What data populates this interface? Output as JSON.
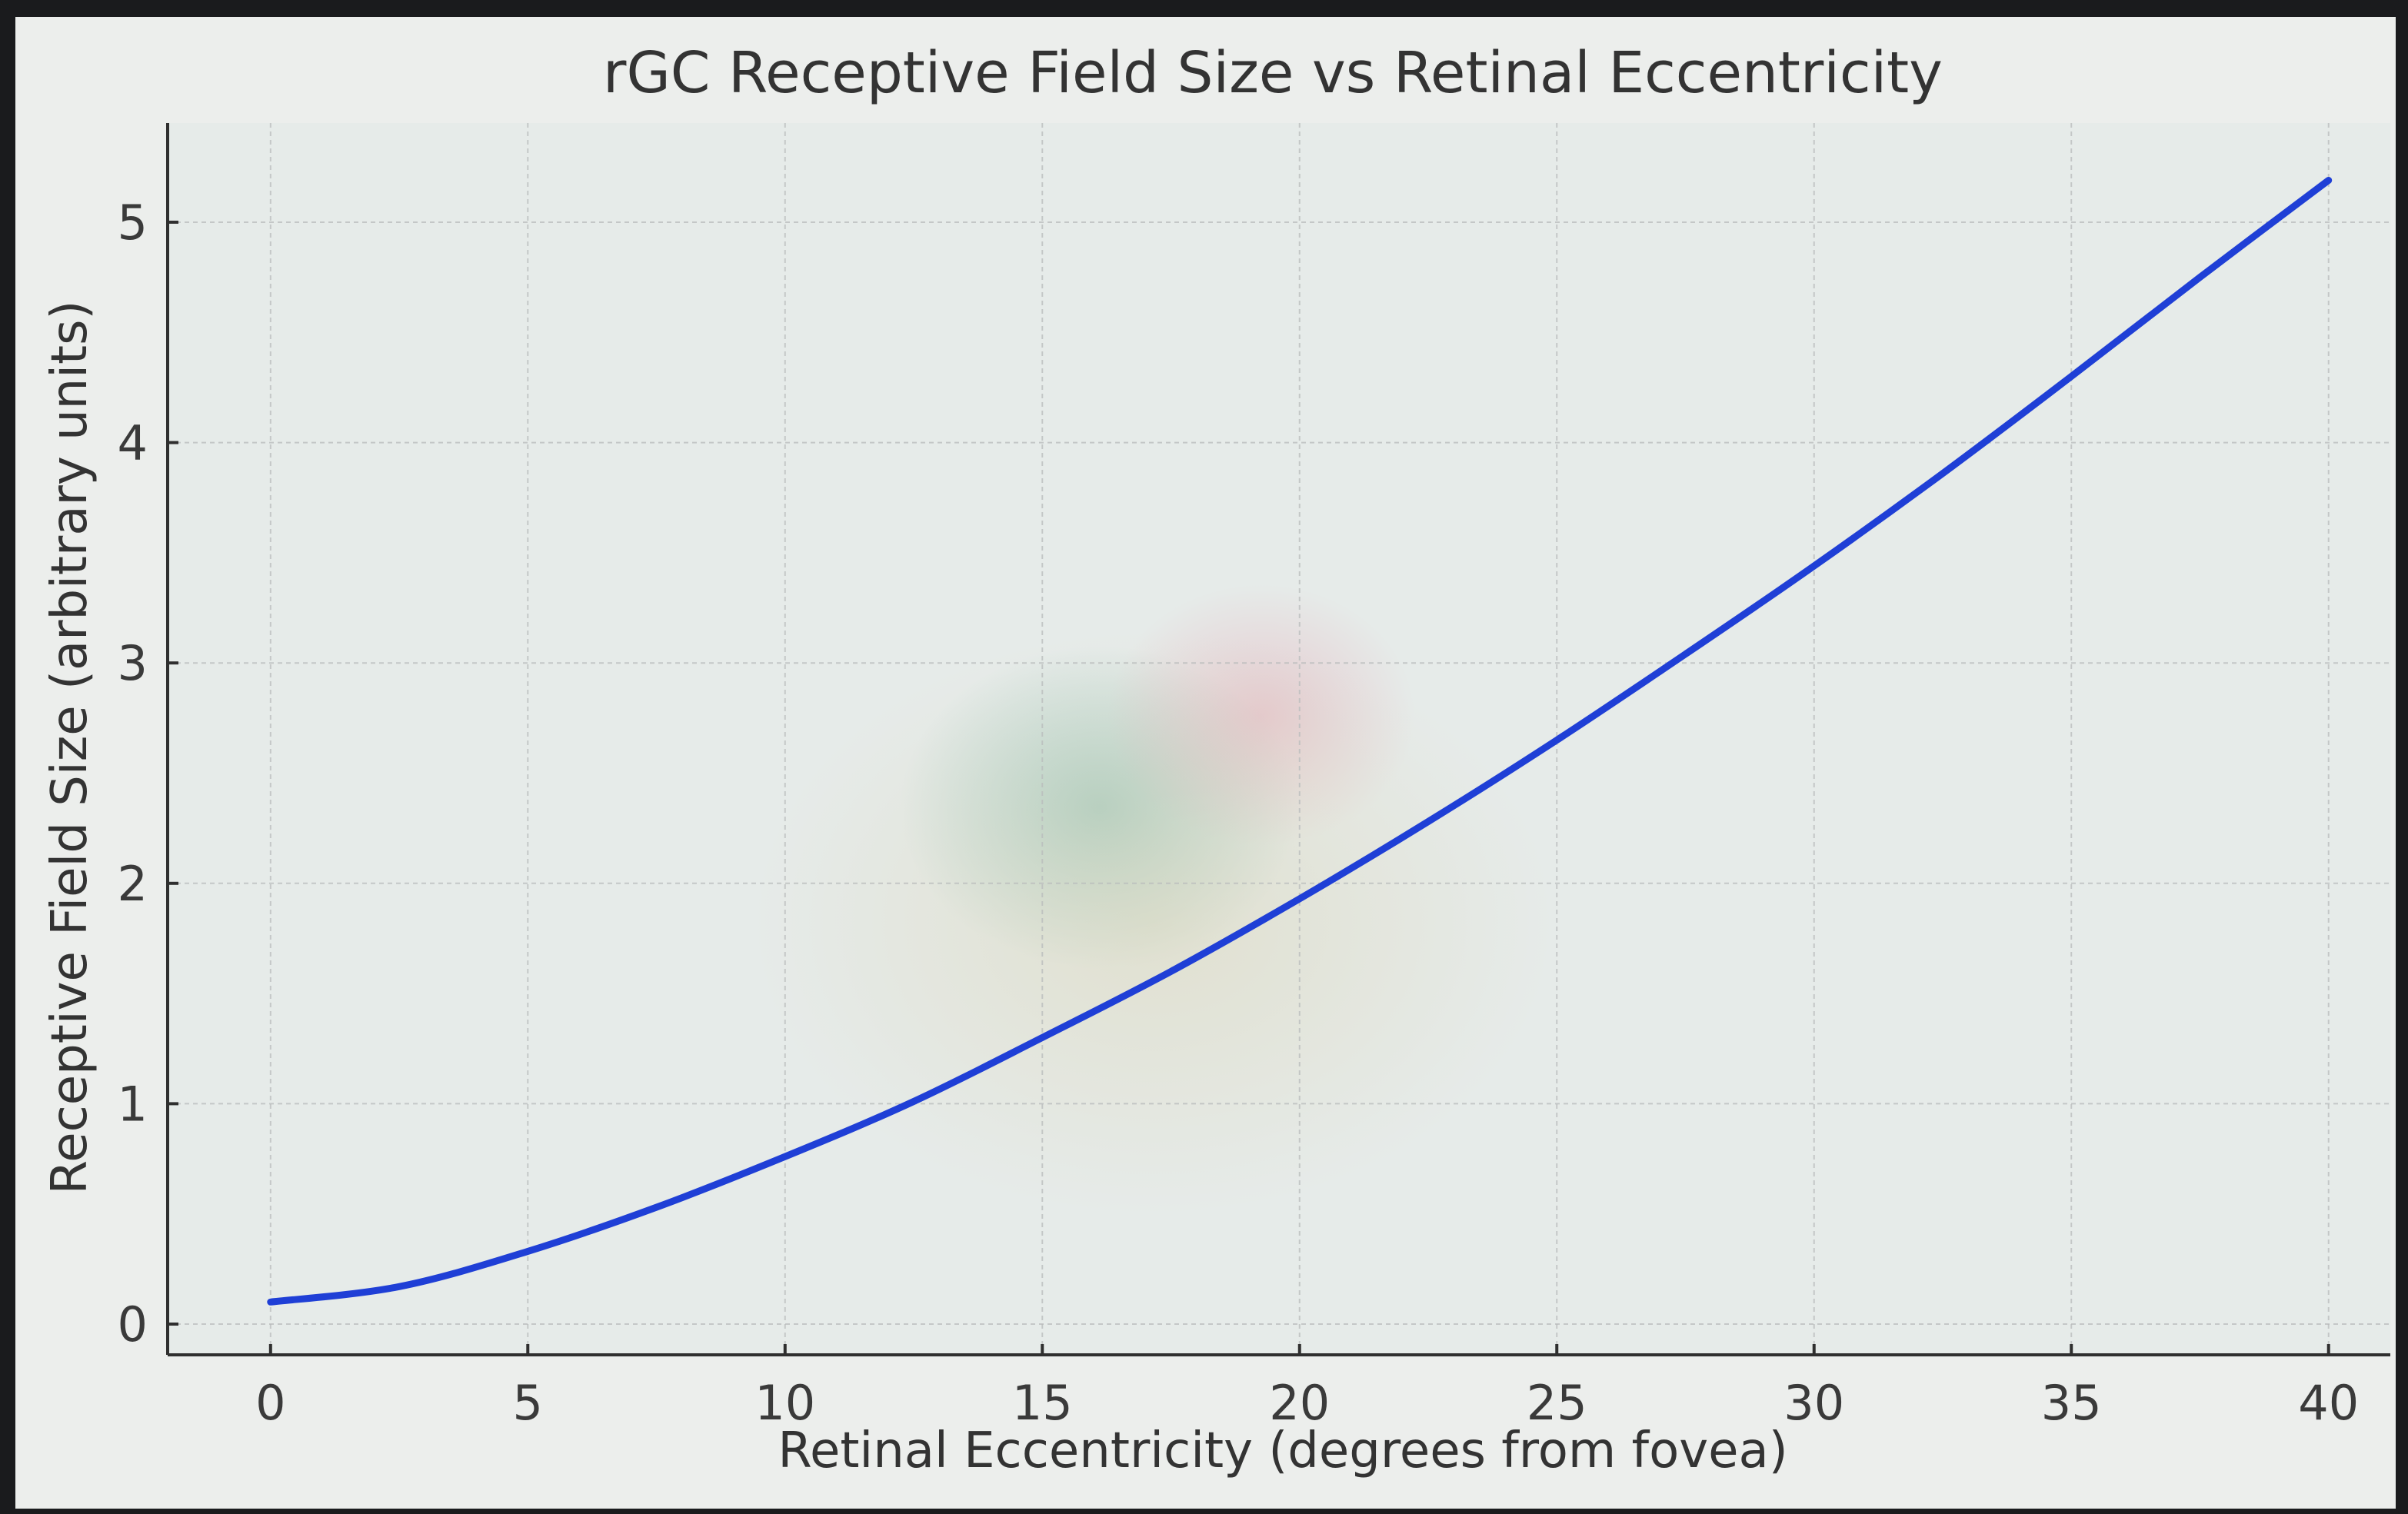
{
  "chart_data": {
    "type": "line",
    "title": "rGC Receptive Field Size vs Retinal Eccentricity",
    "xlabel": "Retinal Eccentricity (degrees from fovea)",
    "ylabel": "Receptive Field Size (arbitrary units)",
    "xlim": [
      -2,
      41.2
    ],
    "ylim": [
      -0.15,
      5.45
    ],
    "xticks": [
      "0",
      "5",
      "10",
      "15",
      "20",
      "25",
      "30",
      "35",
      "40"
    ],
    "yticks": [
      "0",
      "1",
      "2",
      "3",
      "4",
      "5"
    ],
    "grid": true,
    "series": [
      {
        "color": "#1f3fd6",
        "x": [
          0,
          2.5,
          5,
          7.5,
          10,
          12.5,
          15,
          17.5,
          20,
          22.5,
          25,
          27.5,
          30,
          32.5,
          35,
          37.5,
          40
        ],
        "y": [
          0.1,
          0.17,
          0.33,
          0.53,
          0.76,
          1.01,
          1.3,
          1.6,
          1.93,
          2.28,
          2.65,
          3.04,
          3.44,
          3.86,
          4.3,
          4.75,
          5.19
        ]
      }
    ]
  },
  "colors": {
    "plot_background": "#e8eceb",
    "frame": "#f2f3f1",
    "series_line": "#1f3fd6"
  }
}
